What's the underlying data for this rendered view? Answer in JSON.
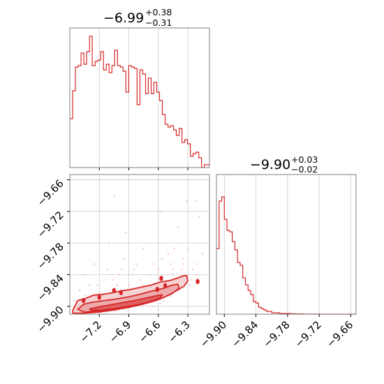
{
  "colors": {
    "line": "#d62728",
    "fill_dark": "#d62728",
    "fill_light": "#f2c4c4",
    "points": "#f6b3b3",
    "grid": "#cccccc",
    "frame": "#7f7f7f"
  },
  "chart_data": [
    {
      "type": "histogram",
      "panel": "marginal-param1",
      "title": {
        "value": "−6.99",
        "upper": "+0.38",
        "lower": "−0.31"
      },
      "x_range": [
        -7.5,
        -6.08
      ],
      "x_ticks": [
        -7.2,
        -6.9,
        -6.6,
        -6.3
      ],
      "bins_x": [
        -7.5,
        -7.471,
        -7.443,
        -7.414,
        -7.386,
        -7.357,
        -7.329,
        -7.3,
        -7.272,
        -7.243,
        -7.215,
        -7.186,
        -7.158,
        -7.129,
        -7.101,
        -7.072,
        -7.044,
        -7.015,
        -6.987,
        -6.958,
        -6.93,
        -6.901,
        -6.873,
        -6.844,
        -6.816,
        -6.787,
        -6.759,
        -6.73,
        -6.702,
        -6.673,
        -6.645,
        -6.616,
        -6.588,
        -6.559,
        -6.531,
        -6.502,
        -6.474,
        -6.445,
        -6.417,
        -6.388,
        -6.36,
        -6.331,
        -6.303,
        -6.274,
        -6.246,
        -6.217,
        -6.189,
        -6.16,
        -6.132,
        -6.103,
        -6.08
      ],
      "values": [
        0.35,
        0.55,
        0.72,
        0.73,
        0.82,
        0.74,
        0.83,
        0.94,
        0.73,
        0.76,
        0.77,
        0.83,
        0.7,
        0.74,
        0.68,
        0.73,
        0.84,
        0.73,
        0.72,
        0.69,
        0.54,
        0.73,
        0.72,
        0.71,
        0.45,
        0.7,
        0.67,
        0.53,
        0.64,
        0.53,
        0.61,
        0.54,
        0.48,
        0.38,
        0.31,
        0.29,
        0.3,
        0.27,
        0.23,
        0.28,
        0.18,
        0.2,
        0.17,
        0.08,
        0.1,
        0.11,
        0.07,
        0.0,
        0.02,
        0.02
      ]
    },
    {
      "type": "histogram",
      "panel": "marginal-param2",
      "title": {
        "value": "−9.90",
        "upper": "+0.03",
        "lower": "−0.02"
      },
      "x_range": [
        -9.915,
        -9.65
      ],
      "x_ticks": [
        -9.9,
        -9.84,
        -9.78,
        -9.72,
        -9.66
      ],
      "bins_x": [
        -9.915,
        -9.91,
        -9.905,
        -9.9,
        -9.895,
        -9.89,
        -9.885,
        -9.88,
        -9.875,
        -9.87,
        -9.865,
        -9.86,
        -9.855,
        -9.85,
        -9.845,
        -9.84,
        -9.835,
        -9.83,
        -9.825,
        -9.82,
        -9.815,
        -9.81,
        -9.805,
        -9.8,
        -9.795,
        -9.79,
        -9.785,
        -9.78,
        -9.775,
        -9.77,
        -9.765,
        -9.76,
        -9.755,
        -9.75,
        -9.745,
        -9.74,
        -9.735,
        -9.73,
        -9.725,
        -9.72,
        -9.715,
        -9.71,
        -9.705,
        -9.7,
        -9.695,
        -9.69,
        -9.685,
        -9.68,
        -9.675,
        -9.67,
        -9.665,
        -9.66,
        -9.65
      ],
      "values": [
        0.47,
        0.81,
        0.84,
        0.68,
        0.6,
        0.59,
        0.52,
        0.46,
        0.37,
        0.35,
        0.26,
        0.21,
        0.17,
        0.14,
        0.09,
        0.08,
        0.05,
        0.04,
        0.03,
        0.02,
        0.02,
        0.01,
        0.01,
        0.01,
        0.005,
        0.005,
        0.005,
        0.005,
        0.003,
        0.003,
        0.002,
        0.002,
        0.002,
        0.001,
        0.001,
        0.001,
        0.001,
        0.001,
        0.001,
        0.001,
        0,
        0,
        0,
        0,
        0,
        0,
        0,
        0,
        0,
        0,
        0,
        0
      ]
    },
    {
      "type": "contour_scatter",
      "panel": "joint",
      "x_range": [
        -7.5,
        -6.08
      ],
      "y_range": [
        -9.915,
        -9.65
      ],
      "x_ticks": [
        -7.2,
        -6.9,
        -6.6,
        -6.3
      ],
      "y_ticks": [
        -9.9,
        -9.84,
        -9.78,
        -9.72,
        -9.66
      ],
      "points": [
        [
          -7.05,
          -9.69
        ],
        [
          -6.58,
          -9.72
        ],
        [
          -6.31,
          -9.7
        ],
        [
          -6.22,
          -9.7
        ],
        [
          -6.18,
          -9.73
        ],
        [
          -6.4,
          -9.75
        ],
        [
          -6.93,
          -9.76
        ],
        [
          -7.1,
          -9.78
        ],
        [
          -6.75,
          -9.79
        ],
        [
          -6.5,
          -9.8
        ],
        [
          -6.3,
          -9.79
        ],
        [
          -6.15,
          -9.8
        ],
        [
          -7.25,
          -9.82
        ],
        [
          -6.95,
          -9.81
        ],
        [
          -6.85,
          -9.83
        ],
        [
          -6.65,
          -9.82
        ],
        [
          -6.45,
          -9.83
        ],
        [
          -6.35,
          -9.81
        ],
        [
          -7.35,
          -9.84
        ],
        [
          -7.15,
          -9.85
        ],
        [
          -7.0,
          -9.84
        ],
        [
          -6.9,
          -9.86
        ],
        [
          -6.78,
          -9.85
        ],
        [
          -6.7,
          -9.87
        ],
        [
          -6.6,
          -9.85
        ],
        [
          -6.52,
          -9.86
        ],
        [
          -6.42,
          -9.85
        ],
        [
          -6.33,
          -9.84
        ],
        [
          -6.28,
          -9.86
        ],
        [
          -7.4,
          -9.87
        ],
        [
          -7.3,
          -9.86
        ],
        [
          -7.2,
          -9.88
        ],
        [
          -7.1,
          -9.87
        ],
        [
          -7.02,
          -9.86
        ],
        [
          -6.96,
          -9.88
        ],
        [
          -6.88,
          -9.87
        ],
        [
          -6.8,
          -9.88
        ],
        [
          -6.72,
          -9.89
        ],
        [
          -6.62,
          -9.88
        ],
        [
          -6.55,
          -9.89
        ],
        [
          -6.48,
          -9.88
        ],
        [
          -6.4,
          -9.87
        ],
        [
          -6.25,
          -9.83
        ],
        [
          -6.2,
          -9.82
        ],
        [
          -7.45,
          -9.89
        ],
        [
          -7.38,
          -9.9
        ],
        [
          -7.28,
          -9.89
        ],
        [
          -7.18,
          -9.9
        ],
        [
          -7.08,
          -9.89
        ],
        [
          -7.0,
          -9.9
        ],
        [
          -6.92,
          -9.895
        ],
        [
          -6.83,
          -9.9
        ],
        [
          -6.74,
          -9.895
        ],
        [
          -6.66,
          -9.9
        ],
        [
          -6.58,
          -9.895
        ],
        [
          -7.43,
          -9.905
        ],
        [
          -7.33,
          -9.905
        ],
        [
          -7.23,
          -9.91
        ],
        [
          -7.13,
          -9.905
        ],
        [
          -7.03,
          -9.91
        ],
        [
          -6.86,
          -9.84
        ],
        [
          -6.97,
          -9.83
        ],
        [
          -7.12,
          -9.83
        ],
        [
          -6.68,
          -9.84
        ],
        [
          -6.48,
          -9.82
        ],
        [
          -6.36,
          -9.83
        ],
        [
          -7.22,
          -9.86
        ],
        [
          -6.76,
          -9.86
        ],
        [
          -6.6,
          -9.83
        ],
        [
          -6.46,
          -9.84
        ],
        [
          -6.26,
          -9.85
        ],
        [
          -6.21,
          -9.84
        ],
        [
          -7.34,
          -9.88
        ],
        [
          -7.06,
          -9.85
        ],
        [
          -6.82,
          -9.82
        ],
        [
          -6.56,
          -9.81
        ],
        [
          -6.34,
          -9.82
        ],
        [
          -6.44,
          -9.79
        ]
      ],
      "contours": [
        {
          "level": "outer",
          "path": [
            [
              -7.47,
              -9.908
            ],
            [
              -7.42,
              -9.889
            ],
            [
              -7.35,
              -9.886
            ],
            [
              -7.26,
              -9.879
            ],
            [
              -7.15,
              -9.877
            ],
            [
              -7.06,
              -9.874
            ],
            [
              -6.98,
              -9.871
            ],
            [
              -6.88,
              -9.868
            ],
            [
              -6.78,
              -9.864
            ],
            [
              -6.68,
              -9.86
            ],
            [
              -6.58,
              -9.854
            ],
            [
              -6.48,
              -9.851
            ],
            [
              -6.4,
              -9.846
            ],
            [
              -6.34,
              -9.842
            ],
            [
              -6.31,
              -9.842
            ],
            [
              -6.3,
              -9.852
            ],
            [
              -6.34,
              -9.862
            ],
            [
              -6.43,
              -9.872
            ],
            [
              -6.53,
              -9.882
            ],
            [
              -6.64,
              -9.89
            ],
            [
              -6.76,
              -9.896
            ],
            [
              -6.9,
              -9.902
            ],
            [
              -7.05,
              -9.907
            ],
            [
              -7.2,
              -9.911
            ],
            [
              -7.35,
              -9.913
            ],
            [
              -7.47,
              -9.913
            ]
          ]
        },
        {
          "level": "middle",
          "path": [
            [
              -7.42,
              -9.906
            ],
            [
              -7.36,
              -9.896
            ],
            [
              -7.26,
              -9.892
            ],
            [
              -7.14,
              -9.889
            ],
            [
              -7.02,
              -9.886
            ],
            [
              -6.9,
              -9.882
            ],
            [
              -6.78,
              -9.877
            ],
            [
              -6.66,
              -9.871
            ],
            [
              -6.55,
              -9.866
            ],
            [
              -6.46,
              -9.86
            ],
            [
              -6.4,
              -9.858
            ],
            [
              -6.39,
              -9.866
            ],
            [
              -6.46,
              -9.876
            ],
            [
              -6.58,
              -9.886
            ],
            [
              -6.72,
              -9.894
            ],
            [
              -6.88,
              -9.9
            ],
            [
              -7.04,
              -9.905
            ],
            [
              -7.2,
              -9.909
            ],
            [
              -7.35,
              -9.911
            ]
          ]
        },
        {
          "level": "inner",
          "path": [
            [
              -7.3,
              -9.905
            ],
            [
              -7.2,
              -9.901
            ],
            [
              -7.08,
              -9.897
            ],
            [
              -6.96,
              -9.893
            ],
            [
              -6.84,
              -9.889
            ],
            [
              -6.72,
              -9.884
            ],
            [
              -6.62,
              -9.88
            ],
            [
              -6.56,
              -9.878
            ],
            [
              -6.58,
              -9.884
            ],
            [
              -6.7,
              -9.892
            ],
            [
              -6.84,
              -9.898
            ],
            [
              -7.0,
              -9.903
            ],
            [
              -7.16,
              -9.907
            ],
            [
              -7.28,
              -9.908
            ]
          ]
        }
      ],
      "islands": [
        [
          -7.2,
          -9.883
        ],
        [
          -7.05,
          -9.87
        ],
        [
          -6.98,
          -9.874
        ],
        [
          -6.61,
          -9.868
        ],
        [
          -6.53,
          -9.861
        ],
        [
          -6.2,
          -9.853
        ],
        [
          -6.57,
          -9.847
        ],
        [
          -7.36,
          -9.889
        ]
      ]
    }
  ]
}
